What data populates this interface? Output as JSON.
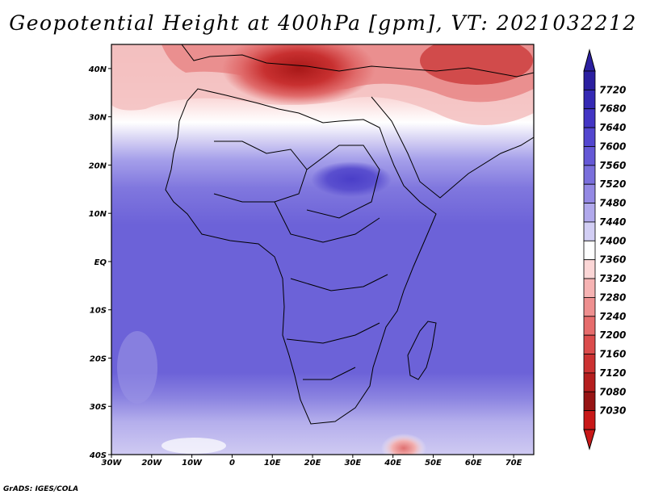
{
  "title": "Geopotential Height at 400hPa [gpm], VT: 2021032212",
  "credit": "GrADS: IGES/COLA",
  "chart_data": {
    "type": "contour-map",
    "variable": "Geopotential Height",
    "level": "400hPa",
    "units": "gpm",
    "valid_time": "2021032212",
    "lon_range": [
      -30,
      75
    ],
    "lat_range": [
      -40,
      45
    ],
    "x_ticks": [
      {
        "value": -30,
        "label": "30W"
      },
      {
        "value": -20,
        "label": "20W"
      },
      {
        "value": -10,
        "label": "10W"
      },
      {
        "value": 0,
        "label": "0"
      },
      {
        "value": 10,
        "label": "10E"
      },
      {
        "value": 20,
        "label": "20E"
      },
      {
        "value": 30,
        "label": "30E"
      },
      {
        "value": 40,
        "label": "40E"
      },
      {
        "value": 50,
        "label": "50E"
      },
      {
        "value": 60,
        "label": "60E"
      },
      {
        "value": 70,
        "label": "70E"
      }
    ],
    "y_ticks": [
      {
        "value": 40,
        "label": "40N"
      },
      {
        "value": 30,
        "label": "30N"
      },
      {
        "value": 20,
        "label": "20N"
      },
      {
        "value": 10,
        "label": "10N"
      },
      {
        "value": 0,
        "label": "EQ"
      },
      {
        "value": -10,
        "label": "10S"
      },
      {
        "value": -20,
        "label": "20S"
      },
      {
        "value": -30,
        "label": "30S"
      },
      {
        "value": -40,
        "label": "40S"
      }
    ],
    "colorbar": {
      "levels": [
        7720,
        7680,
        7640,
        7600,
        7560,
        7520,
        7480,
        7440,
        7400,
        7360,
        7320,
        7280,
        7240,
        7200,
        7160,
        7120,
        7080,
        7030
      ],
      "colors": [
        "#2b1fa0",
        "#3529b4",
        "#4335c4",
        "#5346cf",
        "#6558d6",
        "#7a6fdc",
        "#9489e4",
        "#b1a9ec",
        "#d2cef4",
        "#ffffff",
        "#fbd6d6",
        "#f6b3b3",
        "#ee8f8f",
        "#e66c6c",
        "#db4c4c",
        "#cc3232",
        "#b51e1e",
        "#971414",
        "#c81818"
      ]
    },
    "field_regions": [
      {
        "lon": [
          -30,
          75
        ],
        "lat": [
          -40,
          45
        ],
        "value_min": 7480,
        "value_max": 7520,
        "description": "tropical/southern background"
      },
      {
        "lon": [
          -30,
          75
        ],
        "lat": [
          30,
          45
        ],
        "value_min": 7030,
        "value_max": 7360,
        "description": "northern trough belt"
      },
      {
        "lon": [
          10,
          30
        ],
        "lat": [
          35,
          45
        ],
        "value_min": 7030,
        "value_max": 7120,
        "description": "Mediterranean low core"
      },
      {
        "lon": [
          15,
          30
        ],
        "lat": [
          18,
          24
        ],
        "value_min": 7560,
        "value_max": 7600,
        "description": "Sahara / Sudan high"
      },
      {
        "lon": [
          38,
          45
        ],
        "lat": [
          -40,
          -37
        ],
        "value_min": 7240,
        "value_max": 7320,
        "description": "southern cutoff low"
      }
    ]
  }
}
